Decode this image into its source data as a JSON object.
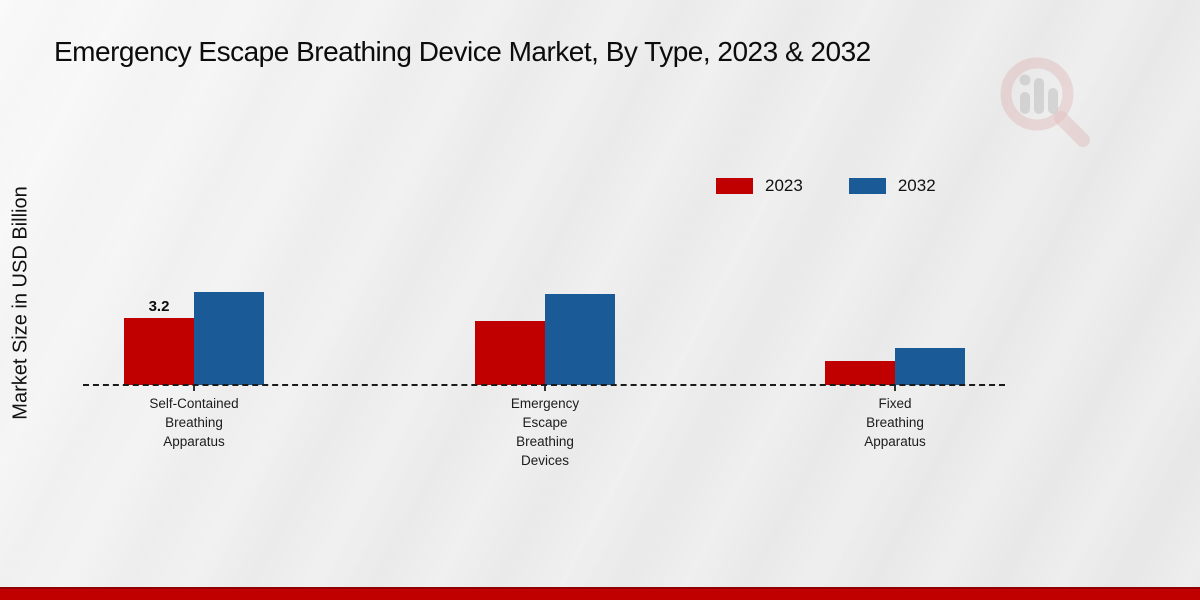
{
  "title": "Emergency Escape Breathing Device Market, By Type, 2023 & 2032",
  "y_axis_label": "Market Size in USD Billion",
  "watermark_icon": "magnifier-bar-chart-logo",
  "footer_band_color": "#c00000",
  "chart_data": {
    "type": "bar",
    "title": "Emergency Escape Breathing Device Market, By Type, 2023 & 2032",
    "xlabel": "",
    "ylabel": "Market Size in USD Billion",
    "unit": "USD Billion",
    "grid": false,
    "legend_position": "top-right",
    "baseline_style": "dashed",
    "ylim": [
      0,
      5
    ],
    "categories": [
      "Self-Contained Breathing Apparatus",
      "Emergency Escape Breathing Devices",
      "Fixed Breathing Apparatus"
    ],
    "category_lines": [
      [
        "Self-Contained",
        "Breathing",
        "Apparatus"
      ],
      [
        "Emergency",
        "Escape",
        "Breathing",
        "Devices"
      ],
      [
        "Fixed",
        "Breathing",
        "Apparatus"
      ]
    ],
    "series": [
      {
        "name": "2023",
        "color": "#c00000",
        "values": [
          3.2,
          3.05,
          1.15
        ]
      },
      {
        "name": "2032",
        "color": "#1a5a96",
        "values": [
          4.45,
          4.35,
          1.75
        ]
      }
    ],
    "value_labels": [
      {
        "series_index": 0,
        "group_index": 0,
        "text": "3.2"
      }
    ]
  }
}
